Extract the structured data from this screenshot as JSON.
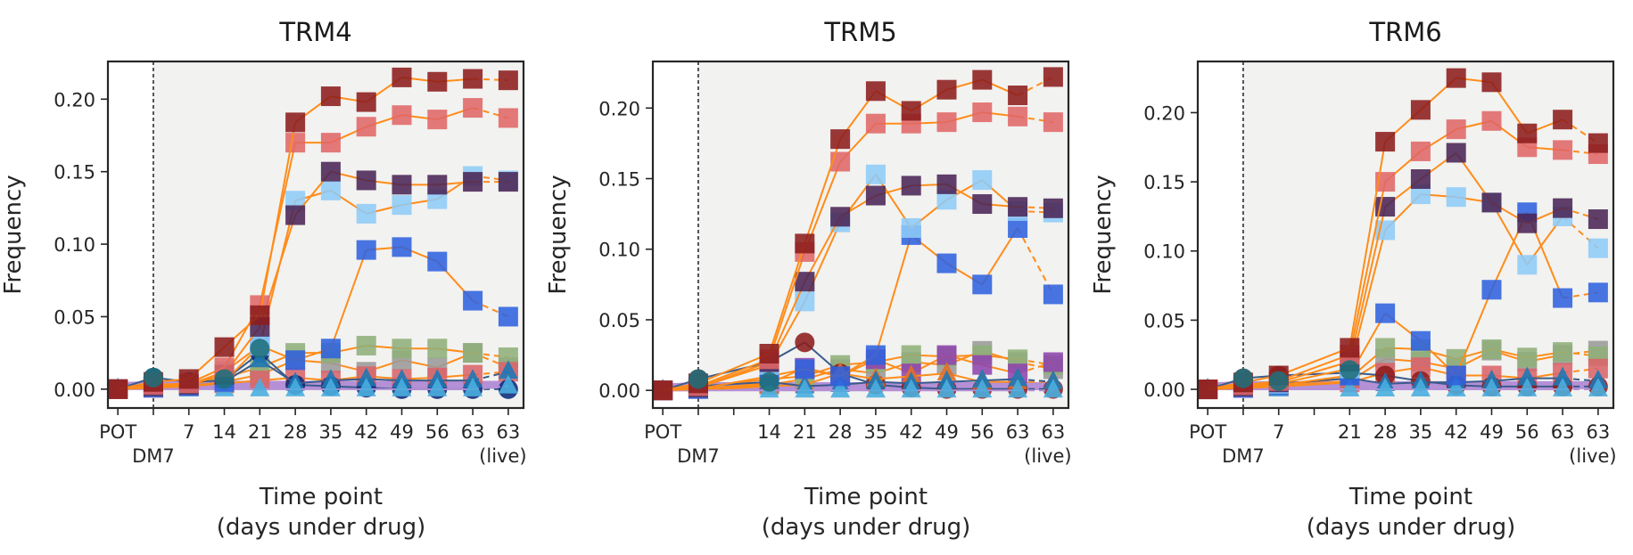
{
  "chart_data": [
    {
      "type": "line",
      "title": "TRM4",
      "ylabel": "Frequency",
      "xlabel_lines": [
        "Time point",
        "(days under drug)"
      ],
      "x_tick_labels": [
        [
          "POT",
          ""
        ],
        [
          "",
          "DM7"
        ],
        [
          "7",
          ""
        ],
        [
          "14",
          ""
        ],
        [
          "21",
          ""
        ],
        [
          "28",
          ""
        ],
        [
          "35",
          ""
        ],
        [
          "42",
          ""
        ],
        [
          "49",
          ""
        ],
        [
          "56",
          ""
        ],
        [
          "63",
          ""
        ],
        [
          "63",
          "(live)"
        ]
      ],
      "y_ticks": [
        0.0,
        0.05,
        0.1,
        0.15,
        0.2
      ],
      "y_tick_labels": [
        "0.00",
        "0.05",
        "0.10",
        "0.15",
        "0.20"
      ],
      "ylim": [
        -0.013,
        0.226
      ],
      "grid": false,
      "treatment_start_marker": "DM7",
      "series": [
        {
          "marker": "line",
          "color": "#b590d6",
          "values": [
            0.002,
            0.003,
            0.003,
            0.003,
            0.003,
            0.003,
            0.003,
            0.003,
            0.003,
            0.003,
            0.003,
            0.003
          ]
        },
        {
          "marker": "square",
          "color": "#9a9a9a",
          "line_color": "#ff8c1a",
          "values": [
            0,
            0.001,
            0.002,
            0.005,
            0.01,
            0.02,
            0.018,
            0.012,
            0.02,
            0.015,
            0.025,
            0.015
          ]
        },
        {
          "marker": "square",
          "color": "#8faf7a",
          "line_color": "#ff8c1a",
          "values": [
            0,
            0.002,
            0.003,
            0.008,
            0.015,
            0.025,
            0.025,
            0.03,
            0.028,
            0.028,
            0.025,
            0.022
          ]
        },
        {
          "marker": "square",
          "color": "#d9646a",
          "line_color": "#ff8c1a",
          "values": [
            0,
            0.001,
            0.002,
            0.004,
            0.006,
            0.008,
            0.006,
            0.009,
            0.007,
            0.008,
            0.01,
            0.012
          ]
        },
        {
          "marker": "circle",
          "color": "#0d2a7a",
          "line_color": "#3b5b8c",
          "values": [
            0,
            0.008,
            0.005,
            0.006,
            0.025,
            0.003,
            0.002,
            0.001,
            0.0,
            0.0,
            0.0,
            0.0
          ]
        },
        {
          "marker": "triangle",
          "color": "#1f78b4",
          "line_color": "#3b5b8c",
          "values": [
            0,
            0.003,
            0.002,
            0.005,
            0.02,
            0.004,
            0.006,
            0.007,
            0.006,
            0.006,
            0.006,
            0.012
          ]
        },
        {
          "marker": "triangle",
          "color": "#4aaedf",
          "line_color": "#b590d6",
          "values": [
            0,
            0.0,
            0.0,
            0.0,
            0.0,
            0.0,
            0.0,
            0.0,
            0.0,
            0.0,
            0.0,
            0.002
          ]
        },
        {
          "marker": "square",
          "color": "#2f62de",
          "line_color": "#ff8c1a",
          "values": [
            0,
            0.001,
            0.002,
            0.005,
            0.03,
            0.02,
            0.028,
            0.096,
            0.098,
            0.088,
            0.061,
            0.05
          ]
        },
        {
          "marker": "square",
          "color": "#8ecbf7",
          "line_color": "#ff8c1a",
          "values": [
            0,
            0.002,
            0.003,
            0.012,
            0.03,
            0.13,
            0.137,
            0.121,
            0.127,
            0.131,
            0.147,
            0.144
          ]
        },
        {
          "marker": "square",
          "color": "#4a2455",
          "line_color": "#ff8c1a",
          "values": [
            0,
            0.002,
            0.003,
            0.01,
            0.043,
            0.12,
            0.15,
            0.144,
            0.141,
            0.141,
            0.143,
            0.143
          ]
        },
        {
          "marker": "square",
          "color": "#e06666",
          "line_color": "#ff8c1a",
          "values": [
            0,
            0.003,
            0.004,
            0.015,
            0.058,
            0.17,
            0.17,
            0.181,
            0.189,
            0.186,
            0.194,
            0.187
          ]
        },
        {
          "marker": "square",
          "color": "#8c1c1c",
          "line_color": "#ff8c1a",
          "values": [
            0,
            0.005,
            0.007,
            0.029,
            0.051,
            0.184,
            0.202,
            0.198,
            0.215,
            0.212,
            0.214,
            0.213
          ]
        },
        {
          "marker": "circle",
          "color": "#1f6f7b",
          "values": [
            null,
            0.008,
            null,
            0.007,
            0.028,
            null,
            null,
            null,
            null,
            null,
            null,
            null
          ]
        }
      ]
    },
    {
      "type": "line",
      "title": "TRM5",
      "ylabel": "Frequency",
      "xlabel_lines": [
        "Time point",
        "(days under drug)"
      ],
      "x_tick_labels": [
        [
          "POT",
          ""
        ],
        [
          "",
          "DM7"
        ],
        [
          "",
          ""
        ],
        [
          "14",
          ""
        ],
        [
          "21",
          ""
        ],
        [
          "28",
          ""
        ],
        [
          "35",
          ""
        ],
        [
          "42",
          ""
        ],
        [
          "49",
          ""
        ],
        [
          "56",
          ""
        ],
        [
          "63",
          ""
        ],
        [
          "63",
          "(live)"
        ]
      ],
      "y_ticks": [
        0.0,
        0.05,
        0.1,
        0.15,
        0.2
      ],
      "y_tick_labels": [
        "0.00",
        "0.05",
        "0.10",
        "0.15",
        "0.20"
      ],
      "ylim": [
        -0.0125,
        0.233
      ],
      "grid": false,
      "treatment_start_marker": "DM7",
      "series": [
        {
          "marker": "line",
          "color": "#b590d6",
          "values": [
            0.002,
            0.003,
            null,
            0.003,
            0.003,
            0.003,
            0.003,
            0.003,
            0.003,
            0.003,
            0.003,
            0.003
          ]
        },
        {
          "marker": "square",
          "color": "#9a9a9a",
          "line_color": "#ff8c1a",
          "values": [
            0,
            0.001,
            null,
            0.004,
            0.008,
            0.015,
            0.012,
            0.02,
            0.018,
            0.028,
            0.02,
            0.015
          ]
        },
        {
          "marker": "square",
          "color": "#8faf7a",
          "line_color": "#ff8c1a",
          "values": [
            0,
            0.002,
            null,
            0.008,
            0.01,
            0.018,
            0.02,
            0.025,
            0.024,
            0.025,
            0.022,
            0.018
          ]
        },
        {
          "marker": "square",
          "color": "#8e44ad",
          "line_color": "#ff8c1a",
          "values": [
            0,
            0.001,
            null,
            0.005,
            0.016,
            0.01,
            0.022,
            0.012,
            0.025,
            0.018,
            0.012,
            0.02
          ]
        },
        {
          "marker": "circle",
          "color": "#8c1c1c",
          "line_color": "#3b5b8c",
          "values": [
            0,
            0.008,
            null,
            0.02,
            0.034,
            0.012,
            0.004,
            0.002,
            0.001,
            0.001,
            0.001,
            0.001
          ]
        },
        {
          "marker": "triangle",
          "color": "#e0702a",
          "line_color": "#ff8c1a",
          "values": [
            0,
            0.0,
            null,
            0.003,
            0.004,
            0.012,
            0.008,
            0.01,
            0.012,
            0.006,
            0.006,
            0.006
          ]
        },
        {
          "marker": "triangle",
          "color": "#1f78b4",
          "line_color": "#3b5b8c",
          "values": [
            0,
            0.003,
            null,
            0.006,
            0.003,
            0.004,
            0.006,
            0.005,
            0.006,
            0.007,
            0.008,
            0.006
          ]
        },
        {
          "marker": "triangle",
          "color": "#4aaedf",
          "line_color": "#b590d6",
          "values": [
            0,
            0.0,
            null,
            0.0,
            0.0,
            0.0,
            0.0,
            0.0,
            0.0,
            0.0,
            0.0,
            0.0
          ]
        },
        {
          "marker": "square",
          "color": "#2f62de",
          "line_color": "#ff8c1a",
          "values": [
            0,
            0.001,
            null,
            0.01,
            0.015,
            0.01,
            0.025,
            0.11,
            0.09,
            0.075,
            0.115,
            0.068
          ]
        },
        {
          "marker": "square",
          "color": "#8ecbf7",
          "line_color": "#ff8c1a",
          "values": [
            0,
            0.002,
            null,
            0.018,
            0.063,
            0.119,
            0.153,
            0.115,
            0.135,
            0.149,
            0.127,
            0.126
          ]
        },
        {
          "marker": "square",
          "color": "#4a2455",
          "line_color": "#ff8c1a",
          "values": [
            0,
            0.002,
            null,
            0.02,
            0.077,
            0.123,
            0.138,
            0.145,
            0.146,
            0.132,
            0.13,
            0.129
          ]
        },
        {
          "marker": "square",
          "color": "#e06666",
          "line_color": "#ff8c1a",
          "values": [
            0,
            0.003,
            null,
            0.022,
            0.098,
            0.162,
            0.189,
            0.189,
            0.19,
            0.197,
            0.194,
            0.19
          ]
        },
        {
          "marker": "square",
          "color": "#8c1c1c",
          "line_color": "#ff8c1a",
          "values": [
            0,
            0.005,
            null,
            0.026,
            0.104,
            0.178,
            0.212,
            0.198,
            0.213,
            0.22,
            0.209,
            0.222
          ]
        },
        {
          "marker": "circle",
          "color": "#1f6f7b",
          "values": [
            null,
            0.008,
            null,
            0.006,
            null,
            null,
            null,
            null,
            null,
            null,
            null,
            null
          ]
        }
      ]
    },
    {
      "type": "line",
      "title": "TRM6",
      "ylabel": "Frequency",
      "xlabel_lines": [
        "Time point",
        "(days under drug)"
      ],
      "x_tick_labels": [
        [
          "POT",
          ""
        ],
        [
          "",
          "DM7"
        ],
        [
          "7",
          ""
        ],
        [
          "",
          ""
        ],
        [
          "21",
          ""
        ],
        [
          "28",
          ""
        ],
        [
          "35",
          ""
        ],
        [
          "42",
          ""
        ],
        [
          "49",
          ""
        ],
        [
          "56",
          ""
        ],
        [
          "63",
          ""
        ],
        [
          "63",
          "(live)"
        ]
      ],
      "y_ticks": [
        0.0,
        0.05,
        0.1,
        0.15,
        0.2
      ],
      "y_tick_labels": [
        "0.00",
        "0.05",
        "0.10",
        "0.15",
        "0.20"
      ],
      "ylim": [
        -0.0135,
        0.237
      ],
      "grid": false,
      "treatment_start_marker": "DM7",
      "series": [
        {
          "marker": "line",
          "color": "#b590d6",
          "values": [
            0.002,
            0.003,
            0.003,
            null,
            0.003,
            0.003,
            0.003,
            0.003,
            0.003,
            0.003,
            0.003,
            0.003
          ]
        },
        {
          "marker": "square",
          "color": "#9a9a9a",
          "line_color": "#ff8c1a",
          "values": [
            0,
            0.001,
            0.002,
            null,
            0.006,
            0.022,
            0.02,
            0.015,
            0.028,
            0.02,
            0.025,
            0.028
          ]
        },
        {
          "marker": "square",
          "color": "#8faf7a",
          "line_color": "#ff8c1a",
          "values": [
            0,
            0.002,
            0.003,
            null,
            0.008,
            0.03,
            0.029,
            0.022,
            0.029,
            0.023,
            0.027,
            0.024
          ]
        },
        {
          "marker": "square",
          "color": "#d9646a",
          "line_color": "#ff8c1a",
          "values": [
            0,
            0.001,
            0.002,
            null,
            0.005,
            0.012,
            0.016,
            0.01,
            0.01,
            0.008,
            0.012,
            0.015
          ]
        },
        {
          "marker": "circle",
          "color": "#8c1c1c",
          "line_color": "#3b5b8c",
          "values": [
            0,
            0.008,
            0.01,
            null,
            0.012,
            0.01,
            0.006,
            0.003,
            0.002,
            0.002,
            0.002,
            0.002
          ]
        },
        {
          "marker": "triangle",
          "color": "#1f78b4",
          "line_color": "#3b5b8c",
          "values": [
            0,
            0.003,
            0.004,
            null,
            0.008,
            0.004,
            0.005,
            0.005,
            0.006,
            0.008,
            0.008,
            0.006
          ]
        },
        {
          "marker": "triangle",
          "color": "#4aaedf",
          "line_color": "#b590d6",
          "values": [
            0,
            0.0,
            0.0,
            null,
            0.0,
            0.0,
            0.0,
            0.0,
            0.0,
            0.0,
            0.0,
            0.0
          ]
        },
        {
          "marker": "square",
          "color": "#2f62de",
          "line_color": "#ff8c1a",
          "values": [
            0,
            0.001,
            0.003,
            null,
            0.01,
            0.055,
            0.035,
            0.01,
            0.072,
            0.128,
            0.066,
            0.07
          ]
        },
        {
          "marker": "square",
          "color": "#8ecbf7",
          "line_color": "#ff8c1a",
          "values": [
            0,
            0.002,
            0.004,
            null,
            0.015,
            0.115,
            0.141,
            0.139,
            0.135,
            0.09,
            0.125,
            0.102
          ]
        },
        {
          "marker": "square",
          "color": "#4a2455",
          "line_color": "#ff8c1a",
          "values": [
            0,
            0.002,
            0.005,
            null,
            0.02,
            0.132,
            0.152,
            0.171,
            0.135,
            0.12,
            0.131,
            0.123
          ]
        },
        {
          "marker": "square",
          "color": "#e06666",
          "line_color": "#ff8c1a",
          "values": [
            0,
            0.003,
            0.006,
            null,
            0.025,
            0.15,
            0.172,
            0.188,
            0.194,
            0.175,
            0.173,
            0.17
          ]
        },
        {
          "marker": "square",
          "color": "#8c1c1c",
          "line_color": "#ff8c1a",
          "values": [
            0,
            0.005,
            0.01,
            null,
            0.03,
            0.179,
            0.202,
            0.225,
            0.222,
            0.185,
            0.195,
            0.178
          ]
        },
        {
          "marker": "circle",
          "color": "#1f6f7b",
          "values": [
            null,
            0.008,
            0.006,
            null,
            0.014,
            null,
            null,
            null,
            null,
            null,
            null,
            null
          ]
        }
      ]
    }
  ],
  "style": {
    "plot_background": "#f2f2f0",
    "axis_color": "#262626"
  }
}
